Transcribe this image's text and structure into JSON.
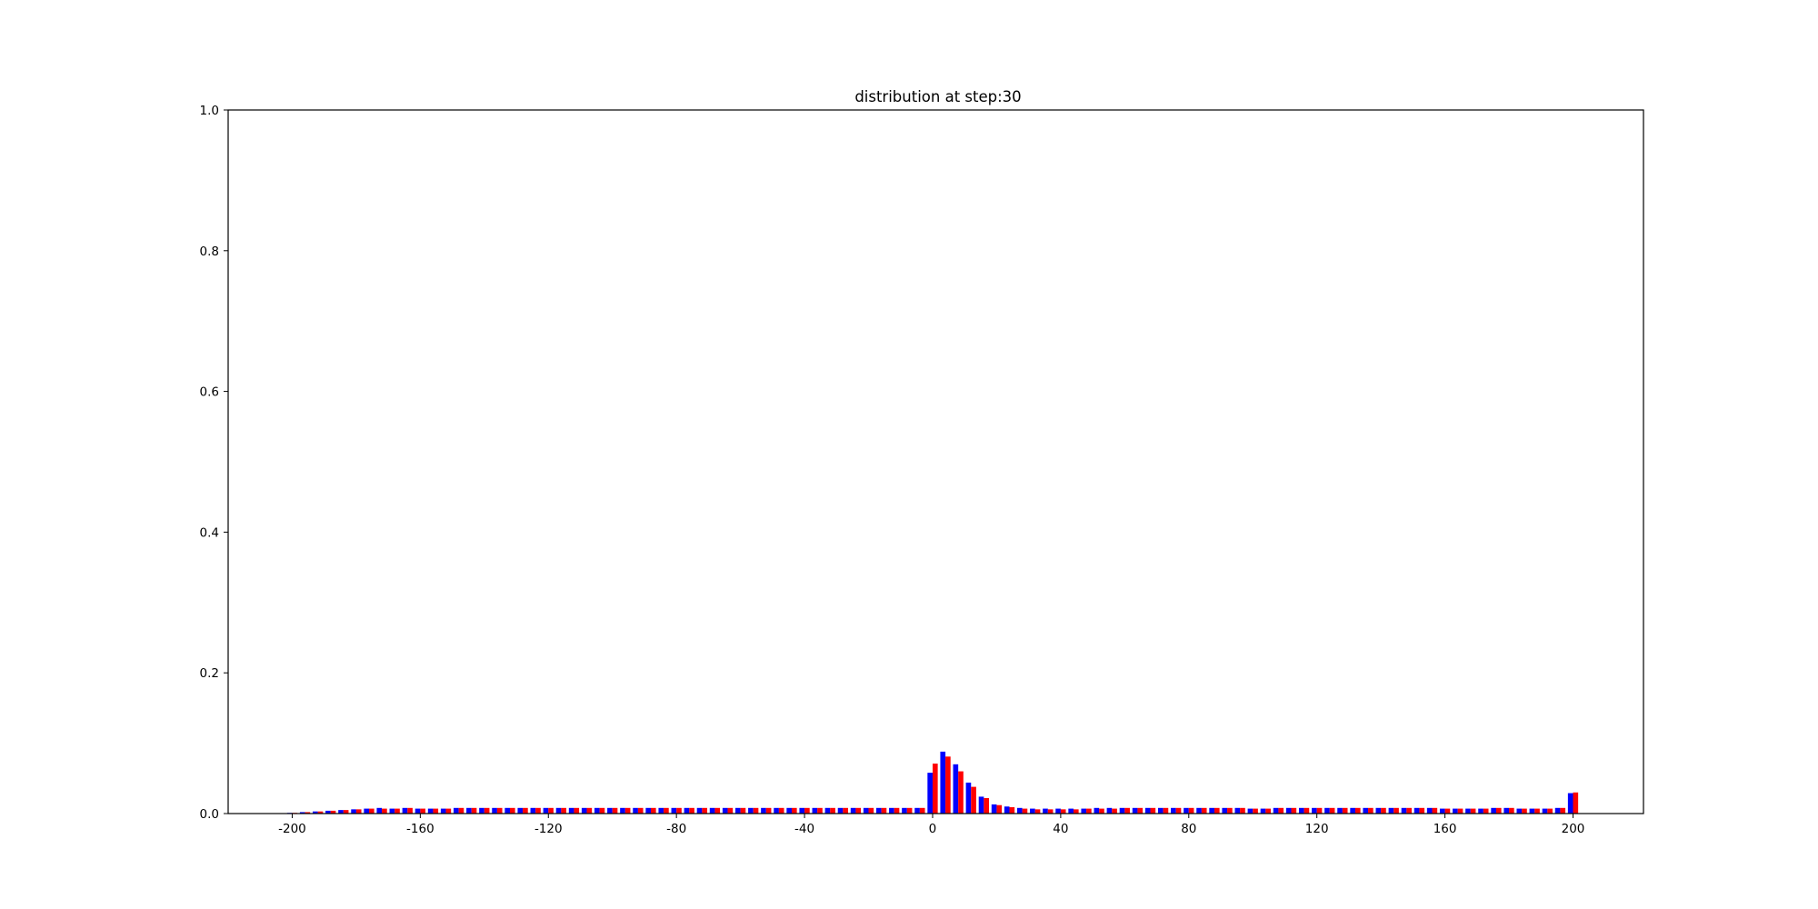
{
  "chart_data": {
    "type": "bar",
    "title": "distribution at step:30",
    "xlabel": "",
    "ylabel": "",
    "xlim": [
      -220,
      222
    ],
    "ylim": [
      0,
      1.0
    ],
    "xticks": [
      -200,
      -160,
      -120,
      -80,
      -40,
      0,
      40,
      80,
      120,
      160,
      200
    ],
    "xtick_labels": [
      "-200",
      "-160",
      "-120",
      "-80",
      "-40",
      "0",
      "40",
      "80",
      "120",
      "160",
      "200"
    ],
    "yticks": [
      0.0,
      0.2,
      0.4,
      0.6,
      0.8,
      1.0
    ],
    "ytick_labels": [
      "0.0",
      "0.2",
      "0.4",
      "0.6",
      "0.8",
      "1.0"
    ],
    "grid": false,
    "x": [
      -200,
      -196,
      -192,
      -188,
      -184,
      -180,
      -176,
      -172,
      -168,
      -164,
      -160,
      -156,
      -152,
      -148,
      -144,
      -140,
      -136,
      -132,
      -128,
      -124,
      -120,
      -116,
      -112,
      -108,
      -104,
      -100,
      -96,
      -92,
      -88,
      -84,
      -80,
      -76,
      -72,
      -68,
      -64,
      -60,
      -56,
      -52,
      -48,
      -44,
      -40,
      -36,
      -32,
      -28,
      -24,
      -20,
      -16,
      -12,
      -8,
      -4,
      0,
      4,
      8,
      12,
      16,
      20,
      24,
      28,
      32,
      36,
      40,
      44,
      48,
      52,
      56,
      60,
      64,
      68,
      72,
      76,
      80,
      84,
      88,
      92,
      96,
      100,
      104,
      108,
      112,
      116,
      120,
      124,
      128,
      132,
      136,
      140,
      144,
      148,
      152,
      156,
      160,
      164,
      168,
      172,
      176,
      180,
      184,
      188,
      192,
      196,
      200
    ],
    "series": [
      {
        "color": "#0000ff",
        "values": [
          0.001,
          0.002,
          0.003,
          0.004,
          0.005,
          0.006,
          0.007,
          0.008,
          0.007,
          0.008,
          0.007,
          0.007,
          0.007,
          0.008,
          0.008,
          0.008,
          0.008,
          0.008,
          0.008,
          0.008,
          0.008,
          0.008,
          0.008,
          0.008,
          0.008,
          0.008,
          0.008,
          0.008,
          0.008,
          0.008,
          0.008,
          0.008,
          0.008,
          0.008,
          0.008,
          0.008,
          0.008,
          0.008,
          0.008,
          0.008,
          0.008,
          0.008,
          0.008,
          0.008,
          0.008,
          0.008,
          0.008,
          0.008,
          0.008,
          0.008,
          0.058,
          0.088,
          0.07,
          0.044,
          0.024,
          0.013,
          0.01,
          0.008,
          0.007,
          0.007,
          0.007,
          0.007,
          0.007,
          0.008,
          0.008,
          0.008,
          0.008,
          0.008,
          0.008,
          0.008,
          0.008,
          0.008,
          0.008,
          0.008,
          0.008,
          0.007,
          0.007,
          0.008,
          0.008,
          0.008,
          0.008,
          0.008,
          0.008,
          0.008,
          0.008,
          0.008,
          0.008,
          0.008,
          0.008,
          0.008,
          0.007,
          0.007,
          0.007,
          0.007,
          0.008,
          0.008,
          0.007,
          0.007,
          0.007,
          0.008,
          0.029
        ]
      },
      {
        "color": "#ff0000",
        "values": [
          0.001,
          0.002,
          0.003,
          0.004,
          0.005,
          0.006,
          0.007,
          0.007,
          0.007,
          0.008,
          0.007,
          0.007,
          0.007,
          0.008,
          0.008,
          0.008,
          0.008,
          0.008,
          0.008,
          0.008,
          0.008,
          0.008,
          0.008,
          0.008,
          0.008,
          0.008,
          0.008,
          0.008,
          0.008,
          0.008,
          0.008,
          0.008,
          0.008,
          0.008,
          0.008,
          0.008,
          0.008,
          0.008,
          0.008,
          0.008,
          0.008,
          0.008,
          0.008,
          0.008,
          0.008,
          0.008,
          0.008,
          0.008,
          0.008,
          0.008,
          0.071,
          0.081,
          0.06,
          0.038,
          0.022,
          0.012,
          0.009,
          0.007,
          0.006,
          0.006,
          0.006,
          0.006,
          0.007,
          0.007,
          0.007,
          0.008,
          0.008,
          0.008,
          0.008,
          0.008,
          0.008,
          0.008,
          0.008,
          0.008,
          0.008,
          0.007,
          0.007,
          0.008,
          0.008,
          0.008,
          0.008,
          0.008,
          0.008,
          0.008,
          0.008,
          0.008,
          0.008,
          0.008,
          0.008,
          0.008,
          0.007,
          0.007,
          0.007,
          0.007,
          0.008,
          0.008,
          0.007,
          0.007,
          0.007,
          0.008,
          0.03
        ]
      }
    ]
  }
}
